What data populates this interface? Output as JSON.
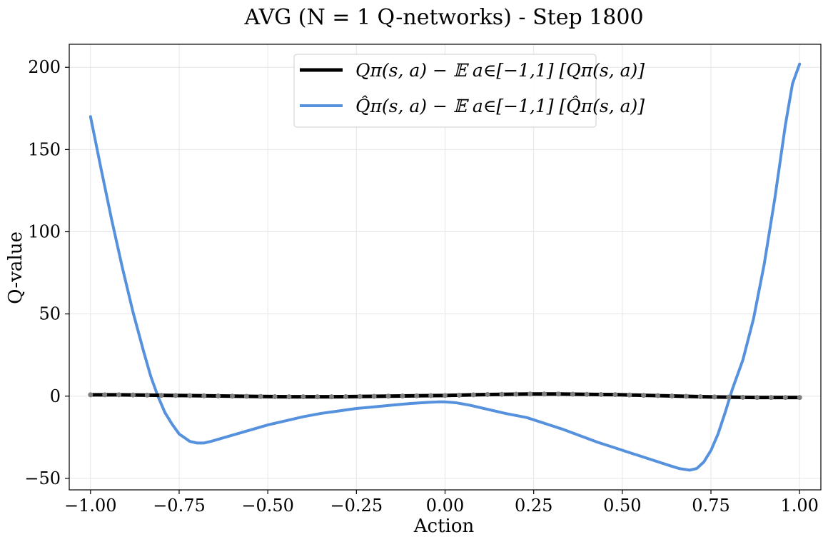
{
  "chart_data": {
    "type": "line",
    "title": "AVG (N = 1 Q-networks) - Step 1800",
    "xlabel": "Action",
    "ylabel": "Q-value",
    "xlim": [
      -1.06,
      1.06
    ],
    "ylim": [
      -57,
      214
    ],
    "xticks": [
      -1.0,
      -0.75,
      -0.5,
      -0.25,
      0.0,
      0.25,
      0.5,
      0.75,
      1.0
    ],
    "xtick_labels": [
      "−1.00",
      "−0.75",
      "−0.50",
      "−0.25",
      "0.00",
      "0.25",
      "0.50",
      "0.75",
      "1.00"
    ],
    "yticks": [
      -50,
      0,
      50,
      100,
      150,
      200
    ],
    "ytick_labels": [
      "−50",
      "0",
      "50",
      "100",
      "150",
      "200"
    ],
    "grid": true,
    "legend_position": "upper center",
    "series": [
      {
        "name": "Qπ(s, a) − 𝔼 a∈[−1,1] [Qπ(s, a)]",
        "color": "#000000",
        "marker_color": "#808080",
        "x": [
          -1.0,
          -0.96,
          -0.92,
          -0.88,
          -0.84,
          -0.8,
          -0.76,
          -0.72,
          -0.68,
          -0.64,
          -0.6,
          -0.56,
          -0.52,
          -0.48,
          -0.44,
          -0.4,
          -0.36,
          -0.32,
          -0.28,
          -0.24,
          -0.2,
          -0.16,
          -0.12,
          -0.08,
          -0.04,
          0.0,
          0.04,
          0.08,
          0.12,
          0.16,
          0.2,
          0.24,
          0.28,
          0.32,
          0.36,
          0.4,
          0.44,
          0.48,
          0.52,
          0.56,
          0.6,
          0.64,
          0.68,
          0.72,
          0.76,
          0.8,
          0.84,
          0.88,
          0.92,
          0.96,
          1.0
        ],
        "y": [
          0.8,
          0.8,
          0.8,
          0.7,
          0.6,
          0.5,
          0.4,
          0.3,
          0.2,
          0.1,
          0.0,
          -0.1,
          -0.2,
          -0.3,
          -0.4,
          -0.4,
          -0.4,
          -0.4,
          -0.3,
          -0.2,
          -0.1,
          0.0,
          0.1,
          0.2,
          0.3,
          0.4,
          0.6,
          0.8,
          1.0,
          1.1,
          1.2,
          1.3,
          1.3,
          1.3,
          1.2,
          1.1,
          1.0,
          0.9,
          0.7,
          0.5,
          0.3,
          0.1,
          -0.1,
          -0.3,
          -0.5,
          -0.6,
          -0.7,
          -0.8,
          -0.8,
          -0.8,
          -0.8
        ]
      },
      {
        "name": "Q̂π(s, a) − 𝔼 a∈[−1,1] [Q̂π(s, a)]",
        "color": "#5591dd",
        "x": [
          -1.0,
          -0.97,
          -0.94,
          -0.91,
          -0.88,
          -0.85,
          -0.83,
          -0.81,
          -0.79,
          -0.77,
          -0.75,
          -0.72,
          -0.7,
          -0.68,
          -0.66,
          -0.62,
          -0.58,
          -0.54,
          -0.5,
          -0.45,
          -0.4,
          -0.35,
          -0.3,
          -0.25,
          -0.2,
          -0.15,
          -0.1,
          -0.05,
          -0.02,
          0.0,
          0.03,
          0.07,
          0.12,
          0.17,
          0.23,
          0.28,
          0.33,
          0.38,
          0.43,
          0.48,
          0.53,
          0.58,
          0.63,
          0.66,
          0.69,
          0.71,
          0.73,
          0.75,
          0.77,
          0.79,
          0.81,
          0.84,
          0.87,
          0.9,
          0.93,
          0.96,
          0.98,
          1.0
        ],
        "y": [
          170,
          138,
          107,
          78,
          51,
          27,
          12,
          0,
          -10,
          -17,
          -23,
          -27.5,
          -28.5,
          -28.5,
          -27.5,
          -25,
          -22.5,
          -20,
          -17.5,
          -15,
          -12.5,
          -10.5,
          -9,
          -7.5,
          -6.5,
          -5.5,
          -4.5,
          -3.8,
          -3.5,
          -3.5,
          -4,
          -5.5,
          -8,
          -10.5,
          -13,
          -16.5,
          -20,
          -24,
          -28,
          -31.5,
          -35,
          -38.5,
          -42,
          -44,
          -45,
          -44,
          -40,
          -33,
          -23,
          -10,
          4,
          22,
          47,
          80,
          120,
          165,
          190,
          202
        ]
      }
    ]
  }
}
